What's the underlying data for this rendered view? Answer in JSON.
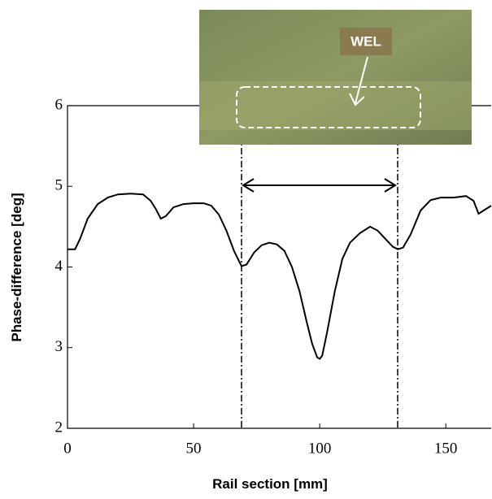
{
  "chart_data": {
    "type": "line",
    "x_label": "Rail section [mm]",
    "y_label": "Phase-difference [deg]",
    "annotation": "WEL",
    "x": [
      0,
      3,
      5,
      8,
      12,
      16,
      20,
      25,
      30,
      33,
      35,
      37,
      39,
      42,
      46,
      50,
      54,
      57,
      60,
      63,
      66,
      69,
      71,
      74,
      77,
      80,
      83,
      86,
      89,
      92,
      95,
      97,
      99,
      100,
      101,
      103,
      106,
      109,
      112,
      116,
      120,
      123,
      126,
      129,
      131,
      133,
      136,
      140,
      144,
      148,
      153,
      158,
      161,
      163,
      165,
      168
    ],
    "values": [
      4.22,
      4.22,
      4.35,
      4.6,
      4.78,
      4.86,
      4.9,
      4.91,
      4.9,
      4.82,
      4.72,
      4.6,
      4.63,
      4.74,
      4.78,
      4.79,
      4.79,
      4.76,
      4.65,
      4.45,
      4.2,
      4.01,
      4.03,
      4.18,
      4.27,
      4.3,
      4.28,
      4.2,
      4.0,
      3.7,
      3.3,
      3.05,
      2.88,
      2.86,
      2.9,
      3.2,
      3.7,
      4.1,
      4.3,
      4.42,
      4.5,
      4.45,
      4.35,
      4.25,
      4.22,
      4.24,
      4.4,
      4.7,
      4.83,
      4.86,
      4.86,
      4.88,
      4.82,
      4.66,
      4.7,
      4.76
    ],
    "color": "#000000",
    "xlim": [
      0,
      168
    ],
    "xticks": [
      0,
      50,
      100,
      150
    ],
    "ylim": [
      2,
      6
    ],
    "yticks": [
      2,
      3,
      4,
      5,
      6
    ]
  }
}
